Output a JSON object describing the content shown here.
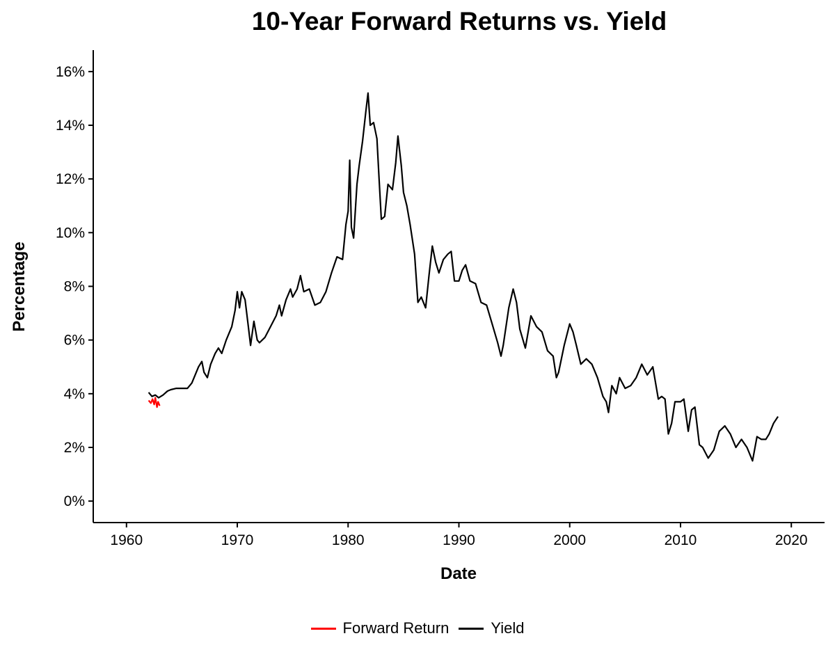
{
  "chart_data": {
    "type": "line",
    "title": "10-Year Forward Returns vs. Yield",
    "xlabel": "Date",
    "ylabel": "Percentage",
    "xlim": [
      1957,
      2023
    ],
    "ylim": [
      -0.8,
      16.8
    ],
    "x_ticks": [
      1960,
      1970,
      1980,
      1990,
      2000,
      2010,
      2020
    ],
    "y_ticks": [
      0,
      2,
      4,
      6,
      8,
      10,
      12,
      14,
      16
    ],
    "y_tick_labels": [
      "0%",
      "2%",
      "4%",
      "6%",
      "8%",
      "10%",
      "12%",
      "14%",
      "16%"
    ],
    "grid": false,
    "legend_position": "bottom",
    "series": [
      {
        "name": "Forward Return",
        "color": "#ff0000",
        "points": [
          [
            1962.0,
            3.75
          ],
          [
            1962.2,
            3.65
          ],
          [
            1962.35,
            3.8
          ],
          [
            1962.5,
            3.6
          ],
          [
            1962.6,
            3.85
          ],
          [
            1962.75,
            3.5
          ],
          [
            1962.85,
            3.7
          ],
          [
            1963.0,
            3.55
          ]
        ]
      },
      {
        "name": "Yield",
        "color": "#000000",
        "points": [
          [
            1962.0,
            4.05
          ],
          [
            1962.3,
            3.9
          ],
          [
            1962.6,
            3.95
          ],
          [
            1962.9,
            3.85
          ],
          [
            1963.3,
            3.95
          ],
          [
            1963.7,
            4.1
          ],
          [
            1964.0,
            4.15
          ],
          [
            1964.5,
            4.2
          ],
          [
            1965.0,
            4.2
          ],
          [
            1965.5,
            4.2
          ],
          [
            1965.9,
            4.4
          ],
          [
            1966.2,
            4.7
          ],
          [
            1966.5,
            5.0
          ],
          [
            1966.8,
            5.2
          ],
          [
            1967.0,
            4.8
          ],
          [
            1967.3,
            4.6
          ],
          [
            1967.6,
            5.1
          ],
          [
            1968.0,
            5.5
          ],
          [
            1968.3,
            5.7
          ],
          [
            1968.6,
            5.5
          ],
          [
            1969.0,
            6.0
          ],
          [
            1969.5,
            6.5
          ],
          [
            1969.8,
            7.1
          ],
          [
            1970.0,
            7.8
          ],
          [
            1970.2,
            7.2
          ],
          [
            1970.4,
            7.8
          ],
          [
            1970.7,
            7.5
          ],
          [
            1971.0,
            6.5
          ],
          [
            1971.2,
            5.8
          ],
          [
            1971.5,
            6.7
          ],
          [
            1971.8,
            6.0
          ],
          [
            1972.0,
            5.9
          ],
          [
            1972.5,
            6.1
          ],
          [
            1973.0,
            6.5
          ],
          [
            1973.5,
            6.9
          ],
          [
            1973.8,
            7.3
          ],
          [
            1974.0,
            6.9
          ],
          [
            1974.4,
            7.5
          ],
          [
            1974.8,
            7.9
          ],
          [
            1975.0,
            7.6
          ],
          [
            1975.4,
            7.9
          ],
          [
            1975.7,
            8.4
          ],
          [
            1976.0,
            7.8
          ],
          [
            1976.5,
            7.9
          ],
          [
            1977.0,
            7.3
          ],
          [
            1977.5,
            7.4
          ],
          [
            1978.0,
            7.8
          ],
          [
            1978.5,
            8.5
          ],
          [
            1979.0,
            9.1
          ],
          [
            1979.5,
            9.0
          ],
          [
            1979.8,
            10.3
          ],
          [
            1980.0,
            10.8
          ],
          [
            1980.15,
            12.7
          ],
          [
            1980.3,
            10.2
          ],
          [
            1980.5,
            9.8
          ],
          [
            1980.8,
            11.8
          ],
          [
            1981.0,
            12.5
          ],
          [
            1981.3,
            13.4
          ],
          [
            1981.6,
            14.5
          ],
          [
            1981.8,
            15.2
          ],
          [
            1982.0,
            14.0
          ],
          [
            1982.3,
            14.1
          ],
          [
            1982.6,
            13.5
          ],
          [
            1982.8,
            12.0
          ],
          [
            1983.0,
            10.5
          ],
          [
            1983.3,
            10.6
          ],
          [
            1983.6,
            11.8
          ],
          [
            1984.0,
            11.6
          ],
          [
            1984.3,
            12.6
          ],
          [
            1984.5,
            13.6
          ],
          [
            1984.8,
            12.5
          ],
          [
            1985.0,
            11.5
          ],
          [
            1985.3,
            11.0
          ],
          [
            1985.6,
            10.3
          ],
          [
            1986.0,
            9.2
          ],
          [
            1986.3,
            7.4
          ],
          [
            1986.6,
            7.6
          ],
          [
            1987.0,
            7.2
          ],
          [
            1987.3,
            8.4
          ],
          [
            1987.6,
            9.5
          ],
          [
            1987.9,
            8.9
          ],
          [
            1988.2,
            8.5
          ],
          [
            1988.6,
            9.0
          ],
          [
            1989.0,
            9.2
          ],
          [
            1989.3,
            9.3
          ],
          [
            1989.6,
            8.2
          ],
          [
            1990.0,
            8.2
          ],
          [
            1990.3,
            8.6
          ],
          [
            1990.6,
            8.8
          ],
          [
            1991.0,
            8.2
          ],
          [
            1991.5,
            8.1
          ],
          [
            1992.0,
            7.4
          ],
          [
            1992.5,
            7.3
          ],
          [
            1993.0,
            6.6
          ],
          [
            1993.5,
            5.9
          ],
          [
            1993.8,
            5.4
          ],
          [
            1994.0,
            5.8
          ],
          [
            1994.5,
            7.2
          ],
          [
            1994.9,
            7.9
          ],
          [
            1995.2,
            7.4
          ],
          [
            1995.5,
            6.4
          ],
          [
            1996.0,
            5.7
          ],
          [
            1996.5,
            6.9
          ],
          [
            1997.0,
            6.5
          ],
          [
            1997.5,
            6.3
          ],
          [
            1998.0,
            5.6
          ],
          [
            1998.5,
            5.4
          ],
          [
            1998.8,
            4.6
          ],
          [
            1999.0,
            4.8
          ],
          [
            1999.5,
            5.8
          ],
          [
            2000.0,
            6.6
          ],
          [
            2000.3,
            6.3
          ],
          [
            2000.6,
            5.8
          ],
          [
            2001.0,
            5.1
          ],
          [
            2001.5,
            5.3
          ],
          [
            2002.0,
            5.1
          ],
          [
            2002.5,
            4.6
          ],
          [
            2003.0,
            3.9
          ],
          [
            2003.3,
            3.7
          ],
          [
            2003.5,
            3.3
          ],
          [
            2003.8,
            4.3
          ],
          [
            2004.2,
            4.0
          ],
          [
            2004.5,
            4.6
          ],
          [
            2005.0,
            4.2
          ],
          [
            2005.5,
            4.3
          ],
          [
            2006.0,
            4.6
          ],
          [
            2006.5,
            5.1
          ],
          [
            2007.0,
            4.7
          ],
          [
            2007.5,
            5.0
          ],
          [
            2008.0,
            3.8
          ],
          [
            2008.3,
            3.9
          ],
          [
            2008.6,
            3.8
          ],
          [
            2008.9,
            2.5
          ],
          [
            2009.2,
            2.9
          ],
          [
            2009.5,
            3.7
          ],
          [
            2010.0,
            3.7
          ],
          [
            2010.3,
            3.8
          ],
          [
            2010.7,
            2.6
          ],
          [
            2011.0,
            3.4
          ],
          [
            2011.3,
            3.5
          ],
          [
            2011.7,
            2.1
          ],
          [
            2012.0,
            2.0
          ],
          [
            2012.5,
            1.6
          ],
          [
            2013.0,
            1.9
          ],
          [
            2013.5,
            2.6
          ],
          [
            2014.0,
            2.8
          ],
          [
            2014.5,
            2.5
          ],
          [
            2015.0,
            2.0
          ],
          [
            2015.5,
            2.3
          ],
          [
            2016.0,
            2.0
          ],
          [
            2016.5,
            1.5
          ],
          [
            2016.9,
            2.4
          ],
          [
            2017.3,
            2.3
          ],
          [
            2017.7,
            2.3
          ],
          [
            2018.0,
            2.5
          ],
          [
            2018.4,
            2.9
          ],
          [
            2018.8,
            3.15
          ]
        ]
      }
    ]
  }
}
